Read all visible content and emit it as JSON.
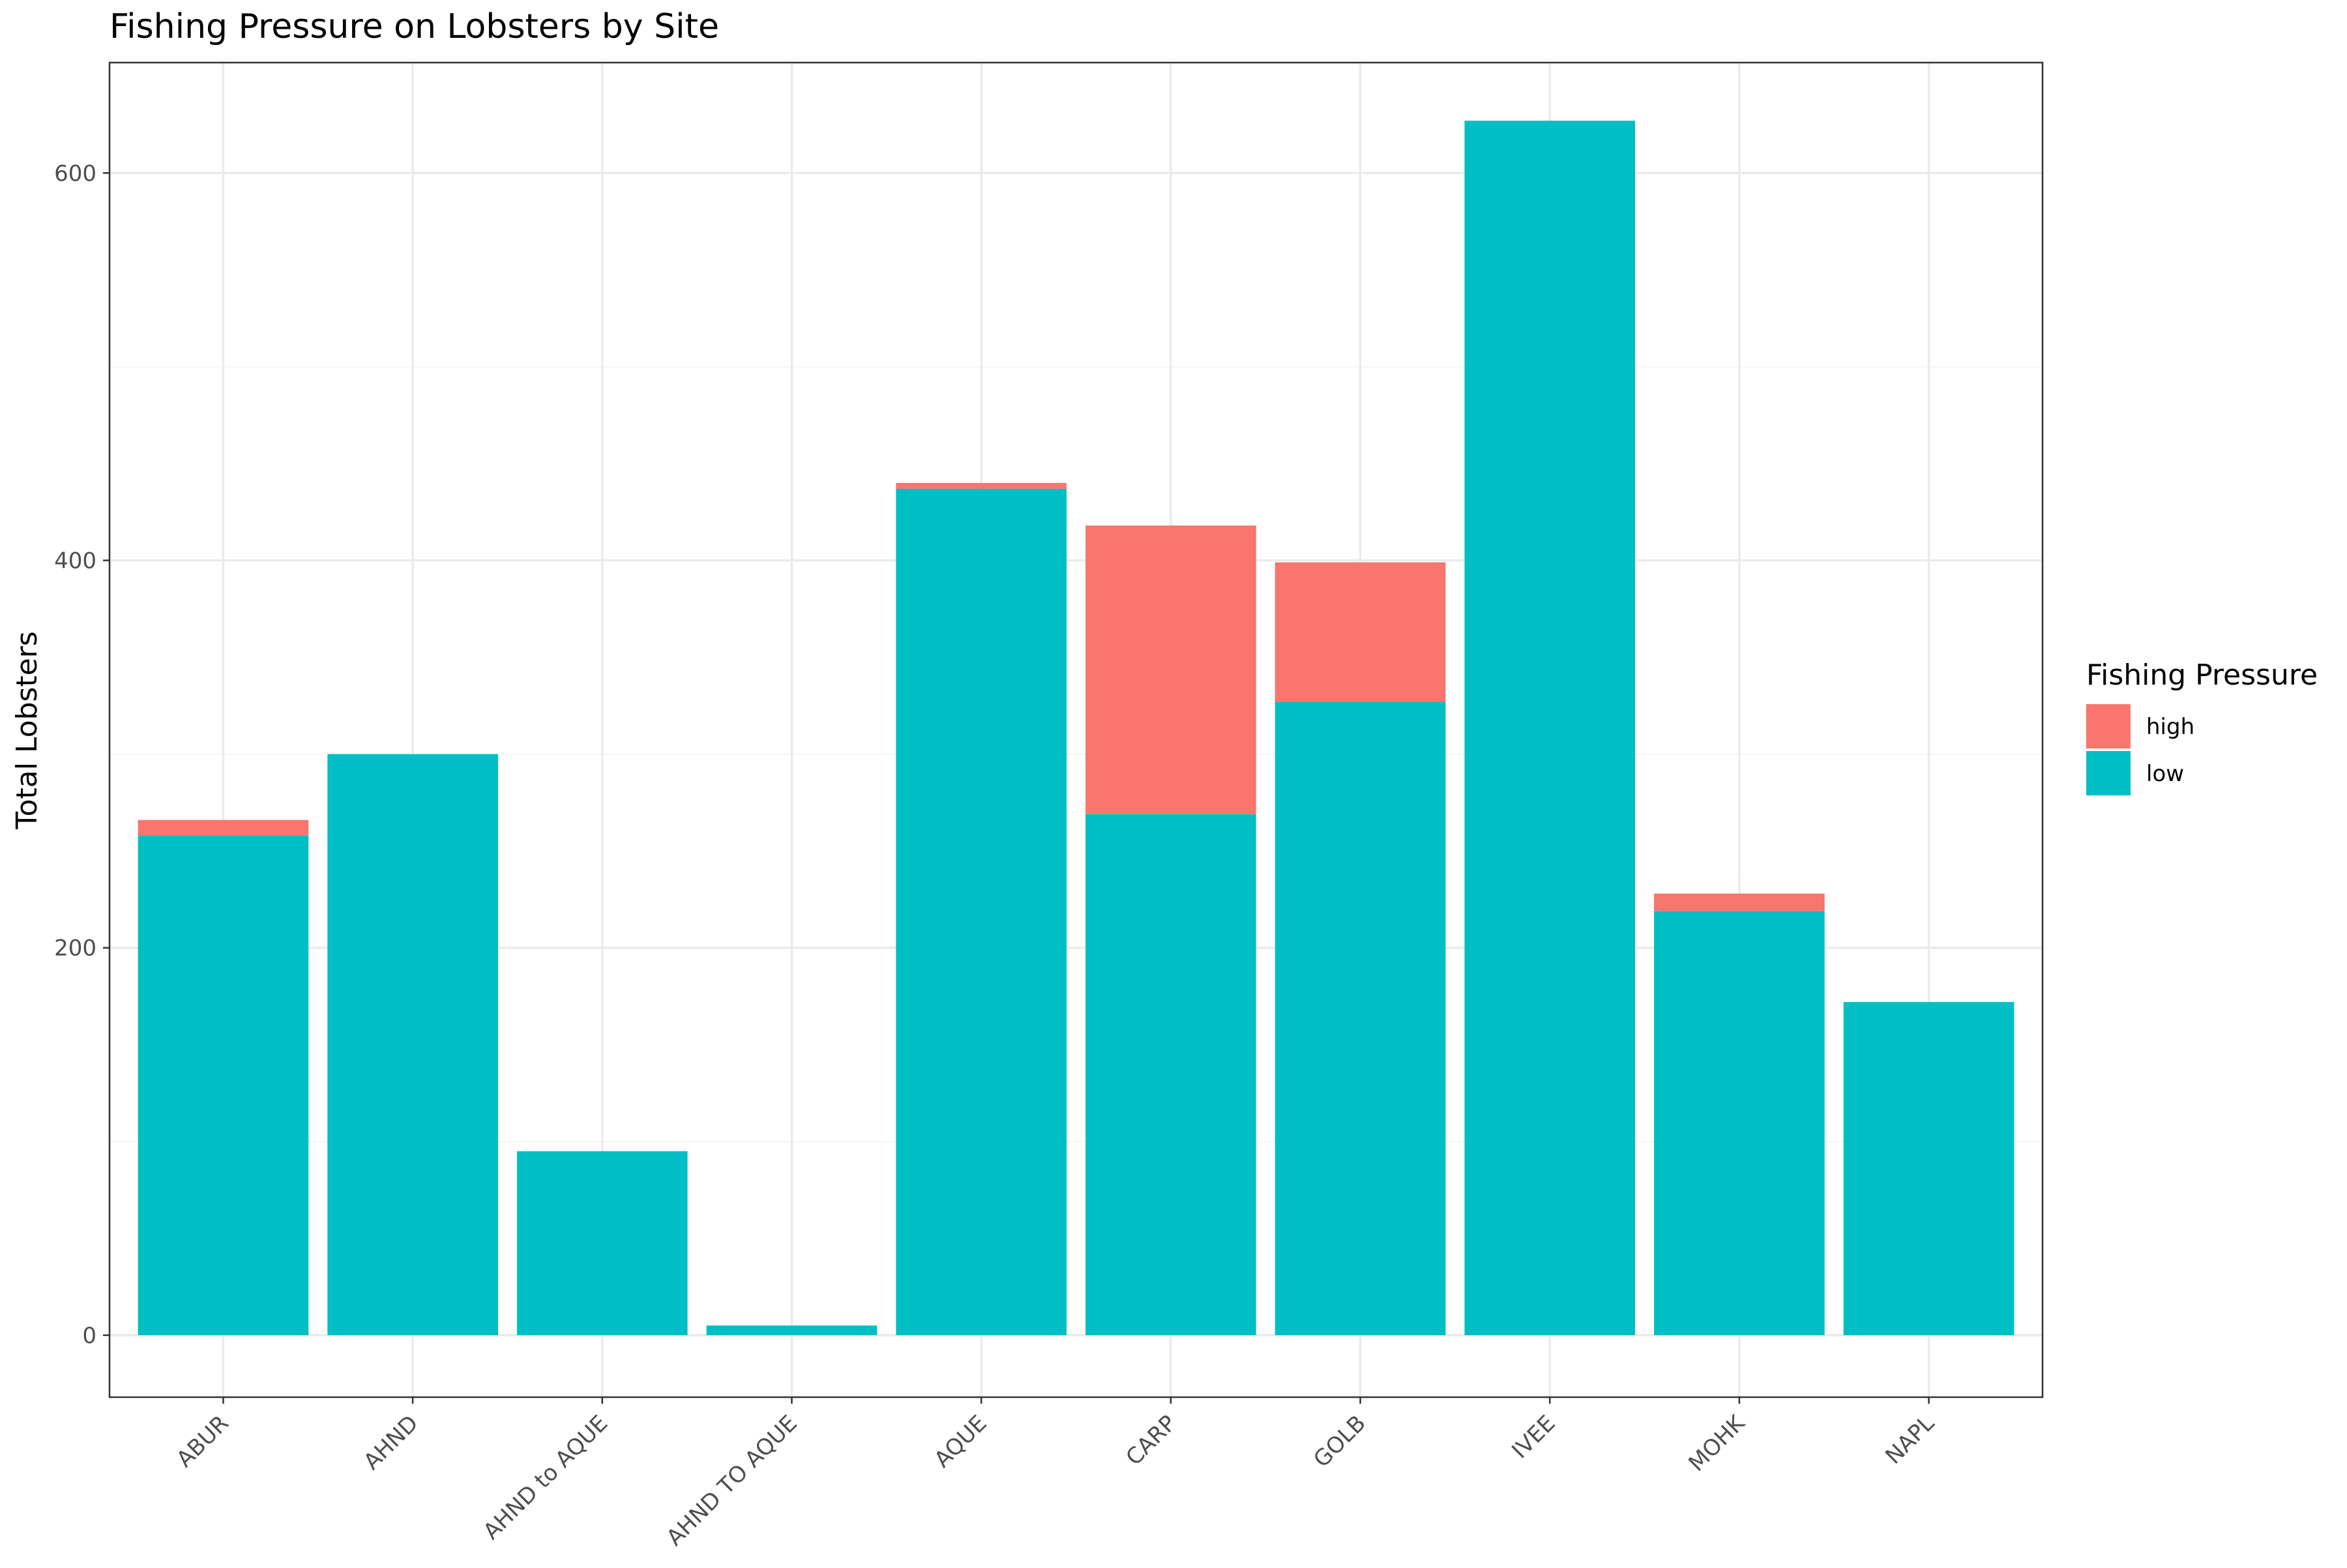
{
  "chart_data": {
    "type": "bar",
    "stacked": true,
    "title": "Fishing Pressure on Lobsters by Site",
    "xlabel": "",
    "ylabel": "Total Lobsters",
    "ylim": [
      -32,
      657
    ],
    "yticks": [
      0,
      200,
      400,
      600
    ],
    "grid": true,
    "legend": {
      "title": "Fishing Pressure",
      "position": "right"
    },
    "categories": [
      "ABUR",
      "AHND",
      "AHND to AQUE",
      "AHND TO AQUE",
      "AQUE",
      "CARP",
      "GOLB",
      "IVEE",
      "MOHK",
      "NAPL"
    ],
    "series": [
      {
        "name": "low",
        "color": "#00BFC4",
        "values": [
          258,
          300,
          95,
          5,
          437,
          269,
          327,
          627,
          219,
          172
        ]
      },
      {
        "name": "high",
        "color": "#F8766D",
        "values": [
          8,
          0,
          0,
          0,
          3,
          149,
          72,
          0,
          9,
          0
        ]
      }
    ]
  }
}
